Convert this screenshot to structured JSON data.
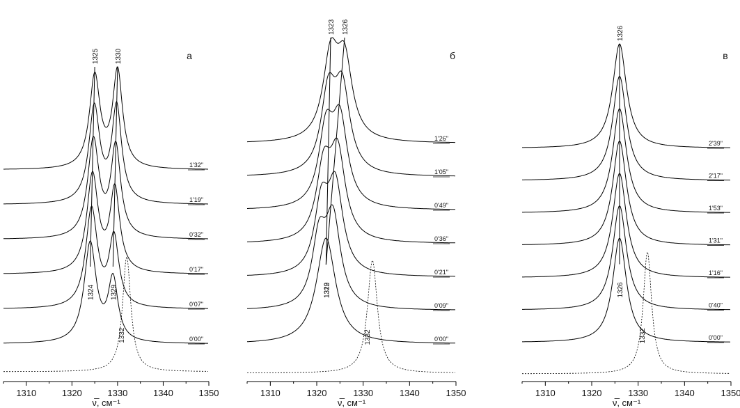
{
  "chart_data": [
    {
      "type": "line",
      "panel_label": "а",
      "xlabel": "ν̅, см⁻¹",
      "xlim": [
        1305,
        1350
      ],
      "xticks": [
        1310,
        1320,
        1330,
        1340,
        1350
      ],
      "series": [
        {
          "name": "0'00\"",
          "peaks": [
            [
              1324,
              1.0,
              1.6
            ],
            [
              1329,
              0.62,
              1.3
            ]
          ]
        },
        {
          "name": "0'07\"",
          "peaks": [
            [
              1324.3,
              1.0,
              1.55
            ],
            [
              1329.2,
              0.7,
              1.3
            ]
          ]
        },
        {
          "name": "0'17\"",
          "peaks": [
            [
              1324.5,
              0.95,
              1.5
            ],
            [
              1329.4,
              0.8,
              1.3
            ]
          ]
        },
        {
          "name": "0'32\"",
          "peaks": [
            [
              1324.7,
              0.95,
              1.5
            ],
            [
              1329.6,
              0.88,
              1.3
            ]
          ]
        },
        {
          "name": "1'19\"",
          "peaks": [
            [
              1324.9,
              0.95,
              1.45
            ],
            [
              1329.8,
              0.95,
              1.3
            ]
          ]
        },
        {
          "name": "1'32\"",
          "peaks": [
            [
              1325,
              0.95,
              1.4
            ],
            [
              1330,
              1.0,
              1.3
            ]
          ]
        }
      ],
      "reference": {
        "peak": 1332,
        "width": 1.1
      },
      "peak_labels": {
        "top": [
          "1325",
          "1330"
        ],
        "bottom": [
          "1324",
          "1329"
        ],
        "reference": "1332"
      }
    },
    {
      "type": "line",
      "panel_label": "б",
      "xlabel": "ν̅, см⁻¹",
      "xlim": [
        1305,
        1350
      ],
      "xticks": [
        1310,
        1320,
        1330,
        1340,
        1350
      ],
      "series": [
        {
          "name": "0'00\"",
          "peaks": [
            [
              1322,
              1.0,
              2.5
            ]
          ]
        },
        {
          "name": "0'09\"",
          "peaks": [
            [
              1320.5,
              0.55,
              1.8
            ],
            [
              1323.5,
              0.75,
              2.0
            ]
          ]
        },
        {
          "name": "0'21\"",
          "peaks": [
            [
              1321,
              0.6,
              1.8
            ],
            [
              1324,
              0.8,
              2.0
            ]
          ]
        },
        {
          "name": "0'36\"",
          "peaks": [
            [
              1321.5,
              0.65,
              1.9
            ],
            [
              1324.5,
              0.8,
              2.0
            ]
          ]
        },
        {
          "name": "0'49\"",
          "peaks": [
            [
              1322,
              0.7,
              1.9
            ],
            [
              1325,
              0.8,
              2.0
            ]
          ]
        },
        {
          "name": "1'05\"",
          "peaks": [
            [
              1322.5,
              0.75,
              1.9
            ],
            [
              1325.5,
              0.8,
              2.0
            ]
          ]
        },
        {
          "name": "1'26\"",
          "peaks": [
            [
              1323,
              0.8,
              2.0
            ],
            [
              1326,
              0.75,
              2.0
            ]
          ]
        }
      ],
      "reference": {
        "peak": 1332,
        "width": 1.3
      },
      "peak_labels": {
        "top": [
          "1323",
          "1326"
        ],
        "bottom": [
          "1319",
          "1322"
        ],
        "reference": "1332"
      }
    },
    {
      "type": "line",
      "panel_label": "в",
      "xlabel": "ν̅, см⁻¹",
      "xlim": [
        1305,
        1350
      ],
      "xticks": [
        1310,
        1320,
        1330,
        1340,
        1350
      ],
      "series": [
        {
          "name": "0'00\"",
          "peaks": [
            [
              1326,
              1.0,
              1.8
            ]
          ]
        },
        {
          "name": "0'40\"",
          "peaks": [
            [
              1326,
              1.0,
              1.8
            ]
          ]
        },
        {
          "name": "1'16\"",
          "peaks": [
            [
              1326,
              1.0,
              1.8
            ]
          ]
        },
        {
          "name": "1'31\"",
          "peaks": [
            [
              1326,
              1.0,
              1.8
            ]
          ]
        },
        {
          "name": "1'53\"",
          "peaks": [
            [
              1326,
              1.0,
              1.8
            ]
          ]
        },
        {
          "name": "2'17\"",
          "peaks": [
            [
              1326,
              1.0,
              1.8
            ]
          ]
        },
        {
          "name": "2'39\"",
          "peaks": [
            [
              1326,
              1.0,
              1.8
            ]
          ]
        }
      ],
      "reference": {
        "peak": 1332,
        "width": 1.1
      },
      "peak_labels": {
        "top": [
          "1326"
        ],
        "bottom": [
          "1326"
        ],
        "reference": "1332"
      }
    }
  ]
}
